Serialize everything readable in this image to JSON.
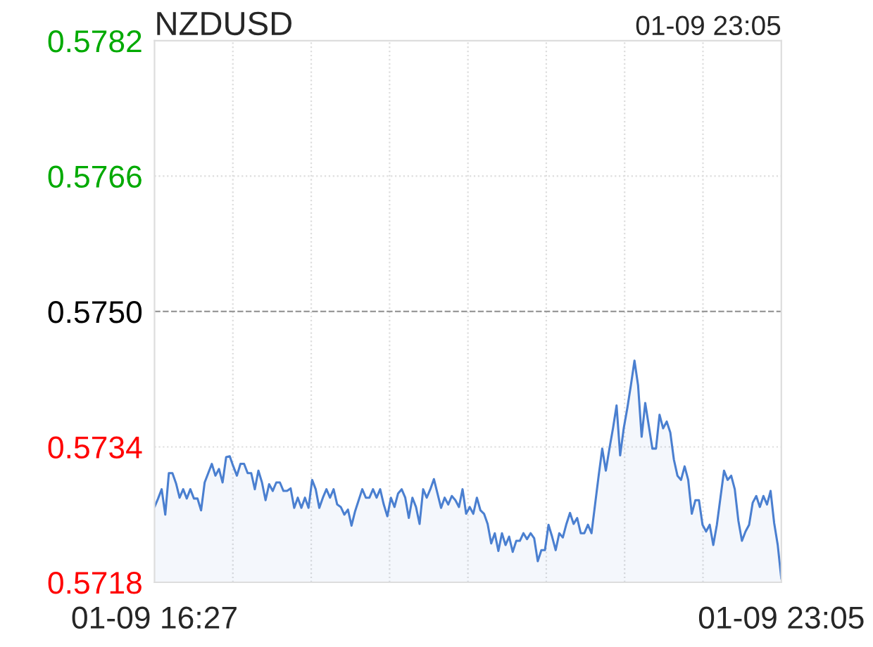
{
  "chart_data": {
    "type": "area",
    "title": "NZDUSD",
    "subtitle": "01-09 23:05",
    "categories": [
      "01-09 16:27",
      null,
      null,
      null,
      null,
      null,
      null,
      null,
      null,
      null,
      null,
      null,
      null,
      null,
      null,
      null,
      null,
      null,
      null,
      null,
      null,
      null,
      null,
      null,
      null,
      null,
      null,
      null,
      null,
      null,
      null,
      null,
      null,
      null,
      null,
      null,
      null,
      null,
      null,
      null,
      null,
      null,
      null,
      null,
      null,
      null,
      null,
      null,
      null,
      null,
      null,
      null,
      null,
      null,
      null,
      null,
      null,
      null,
      null,
      null,
      null,
      null,
      null,
      null,
      null,
      null,
      null,
      null,
      null,
      null,
      null,
      null,
      null,
      null,
      null,
      null,
      null,
      null,
      null,
      null,
      null,
      null,
      null,
      null,
      null,
      null,
      null,
      null,
      null,
      null,
      null,
      null,
      null,
      null,
      null,
      null,
      null,
      null,
      null,
      null,
      null,
      null,
      null,
      null,
      null,
      null,
      null,
      null,
      null,
      null,
      null,
      null,
      null,
      null,
      null,
      null,
      null,
      null,
      null,
      null,
      null,
      null,
      null,
      null,
      null,
      null,
      null,
      null,
      null,
      null,
      null,
      null,
      null,
      null,
      null,
      null,
      null,
      null,
      null,
      null,
      null,
      null,
      null,
      null,
      null,
      null,
      null,
      null,
      null,
      null,
      null,
      null,
      null,
      null,
      null,
      null,
      null,
      null,
      null,
      null,
      null,
      null,
      null,
      null,
      null,
      null,
      null,
      null,
      null,
      null,
      null,
      null,
      null,
      null,
      null,
      "01-09 23:05"
    ],
    "series": [
      {
        "color": "#4a7fd0",
        "values": [
          0.57269,
          0.57279,
          0.5729,
          0.5726,
          0.57309,
          0.57309,
          0.57297,
          0.5728,
          0.5729,
          0.57279,
          0.5729,
          0.57279,
          0.57279,
          0.57265,
          0.57298,
          0.57309,
          0.5732,
          0.57306,
          0.57314,
          0.57298,
          0.57328,
          0.57329,
          0.57317,
          0.57306,
          0.5732,
          0.5732,
          0.57309,
          0.57309,
          0.5729,
          0.57312,
          0.57298,
          0.57277,
          0.57296,
          0.57288,
          0.57298,
          0.57298,
          0.57288,
          0.57288,
          0.57291,
          0.57268,
          0.5728,
          0.57268,
          0.5728,
          0.57268,
          0.57301,
          0.5729,
          0.57268,
          0.5728,
          0.5729,
          0.5728,
          0.5729,
          0.57272,
          0.57269,
          0.5726,
          0.57266,
          0.57247,
          0.57264,
          0.57277,
          0.5729,
          0.5728,
          0.5728,
          0.5729,
          0.5728,
          0.5729,
          0.57272,
          0.57258,
          0.5728,
          0.57269,
          0.57285,
          0.5729,
          0.5728,
          0.57256,
          0.5728,
          0.57269,
          0.57249,
          0.5729,
          0.5728,
          0.5729,
          0.57302,
          0.57285,
          0.57268,
          0.5728,
          0.57272,
          0.57282,
          0.57277,
          0.57269,
          0.5729,
          0.57261,
          0.57269,
          0.57261,
          0.5728,
          0.57265,
          0.57261,
          0.57249,
          0.57226,
          0.57238,
          0.57217,
          0.57238,
          0.57224,
          0.57234,
          0.57216,
          0.57229,
          0.57229,
          0.57238,
          0.57231,
          0.57238,
          0.57232,
          0.57205,
          0.57218,
          0.57218,
          0.57248,
          0.57234,
          0.57218,
          0.57238,
          0.57233,
          0.57249,
          0.57262,
          0.57249,
          0.57256,
          0.57238,
          0.57238,
          0.57248,
          0.57238,
          0.57272,
          0.57306,
          0.57338,
          0.57312,
          0.57338,
          0.57362,
          0.57389,
          0.5733,
          0.57362,
          0.57386,
          0.57413,
          0.57442,
          0.57413,
          0.57352,
          0.57392,
          0.57365,
          0.57338,
          0.57338,
          0.57378,
          0.57362,
          0.5737,
          0.57357,
          0.57325,
          0.57306,
          0.57301,
          0.57317,
          0.57301,
          0.57261,
          0.57277,
          0.57277,
          0.57248,
          0.5724,
          0.57248,
          0.57224,
          0.57248,
          0.5728,
          0.57312,
          0.57301,
          0.57306,
          0.5729,
          0.57253,
          0.57229,
          0.5724,
          0.57248,
          0.57274,
          0.57282,
          0.57269,
          0.57282,
          0.57272,
          0.57288,
          0.5725,
          0.57224,
          0.57184
        ]
      }
    ],
    "ylim": [
      0.5718,
      0.5782
    ],
    "yticks": [
      {
        "value": 0.5718,
        "label": "0.5718"
      },
      {
        "value": 0.5734,
        "label": "0.5734"
      },
      {
        "value": 0.575,
        "label": "0.5750"
      },
      {
        "value": 0.5766,
        "label": "0.5766"
      },
      {
        "value": 0.5782,
        "label": "0.5782"
      }
    ],
    "ref_lines": [
      {
        "axis": "y",
        "value": 0.575,
        "color": "#999999",
        "line_style": "dashed"
      }
    ],
    "grid": true,
    "legend": false,
    "marker": "none",
    "line_style": "solid"
  }
}
